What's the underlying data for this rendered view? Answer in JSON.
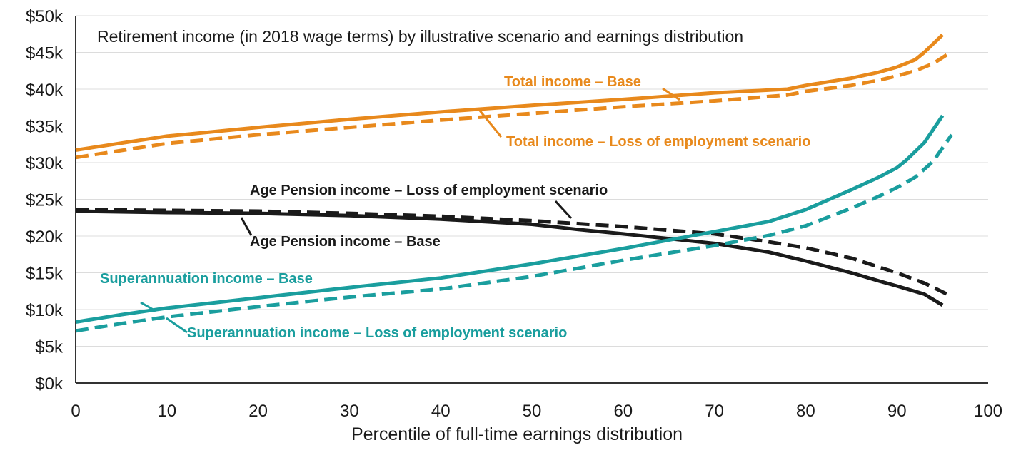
{
  "chart_data": {
    "type": "line",
    "title": "Retirement income (in 2018 wage terms) by illustrative scenario and earnings distribution",
    "xlabel": "Percentile of full-time earnings distribution",
    "ylabel": "",
    "xlim": [
      0,
      100
    ],
    "ylim": [
      0,
      50
    ],
    "x_ticks": [
      "0",
      "10",
      "20",
      "30",
      "40",
      "50",
      "60",
      "70",
      "80",
      "90",
      "100"
    ],
    "y_ticks": [
      "$0k",
      "$5k",
      "$10k",
      "$15k",
      "$20k",
      "$25k",
      "$30k",
      "$35k",
      "$40k",
      "$45k",
      "$50k"
    ],
    "grid": "horizontal",
    "colors": {
      "total": "#e8891c",
      "super": "#1a9e9e",
      "pension": "#1a1a1a"
    },
    "series": [
      {
        "name": "Total income – Base",
        "color": "total",
        "dash": "solid",
        "x": [
          0,
          10,
          20,
          30,
          40,
          50,
          60,
          70,
          78,
          80,
          85,
          88,
          90,
          92,
          93,
          95
        ],
        "y": [
          31.7,
          33.6,
          34.8,
          35.9,
          36.9,
          37.8,
          38.6,
          39.5,
          40.0,
          40.5,
          41.5,
          42.3,
          43.0,
          44.0,
          45.0,
          47.4
        ]
      },
      {
        "name": "Total income – Loss of employment scenario",
        "color": "total",
        "dash": "dashed",
        "x": [
          0,
          10,
          20,
          30,
          40,
          50,
          60,
          70,
          78,
          80,
          85,
          88,
          90,
          92,
          94,
          96
        ],
        "y": [
          30.7,
          32.6,
          33.8,
          34.8,
          35.8,
          36.7,
          37.6,
          38.4,
          39.2,
          39.7,
          40.5,
          41.2,
          41.8,
          42.5,
          43.5,
          45.1
        ]
      },
      {
        "name": "Age Pension income – Base",
        "color": "pension",
        "dash": "solid",
        "x": [
          0,
          10,
          20,
          30,
          40,
          50,
          55,
          60,
          70,
          76,
          80,
          85,
          88,
          90,
          93,
          95
        ],
        "y": [
          23.4,
          23.2,
          23.1,
          22.8,
          22.3,
          21.6,
          20.9,
          20.3,
          19.0,
          17.8,
          16.6,
          15.0,
          13.9,
          13.2,
          12.1,
          10.6
        ]
      },
      {
        "name": "Age Pension income – Loss of employment scenario",
        "color": "pension",
        "dash": "dashed",
        "x": [
          0,
          10,
          20,
          30,
          40,
          50,
          60,
          70,
          76,
          80,
          85,
          88,
          90,
          93,
          96
        ],
        "y": [
          23.6,
          23.5,
          23.4,
          23.1,
          22.7,
          22.1,
          21.3,
          20.3,
          19.2,
          18.4,
          17.0,
          15.8,
          15.0,
          13.6,
          11.8
        ]
      },
      {
        "name": "Superannuation income – Base",
        "color": "super",
        "dash": "solid",
        "x": [
          0,
          5,
          10,
          20,
          30,
          40,
          50,
          60,
          70,
          76,
          80,
          85,
          88,
          90,
          91,
          93,
          95
        ],
        "y": [
          8.3,
          9.3,
          10.2,
          11.6,
          13.0,
          14.3,
          16.2,
          18.3,
          20.6,
          22.0,
          23.6,
          26.3,
          28.0,
          29.3,
          30.3,
          32.7,
          36.4
        ]
      },
      {
        "name": "Superannuation income – Loss of employment scenario",
        "color": "super",
        "dash": "dashed",
        "x": [
          0,
          5,
          10,
          20,
          30,
          40,
          50,
          60,
          70,
          76,
          80,
          85,
          88,
          90,
          92,
          94,
          96
        ],
        "y": [
          7.1,
          8.1,
          9.0,
          10.4,
          11.7,
          12.8,
          14.5,
          16.7,
          18.7,
          20.1,
          21.4,
          23.8,
          25.4,
          26.6,
          28.0,
          30.2,
          33.8
        ]
      }
    ],
    "annotations": [
      {
        "text": "Total income – Base",
        "color": "total"
      },
      {
        "text": "Total income – Loss of employment scenario",
        "color": "total"
      },
      {
        "text": "Age Pension income – Loss of employment scenario",
        "color": "pension"
      },
      {
        "text": "Age Pension income –  Base",
        "color": "pension"
      },
      {
        "text": "Superannuation income – Base",
        "color": "super"
      },
      {
        "text": "Superannuation income – Loss of employment scenario",
        "color": "super"
      }
    ]
  }
}
